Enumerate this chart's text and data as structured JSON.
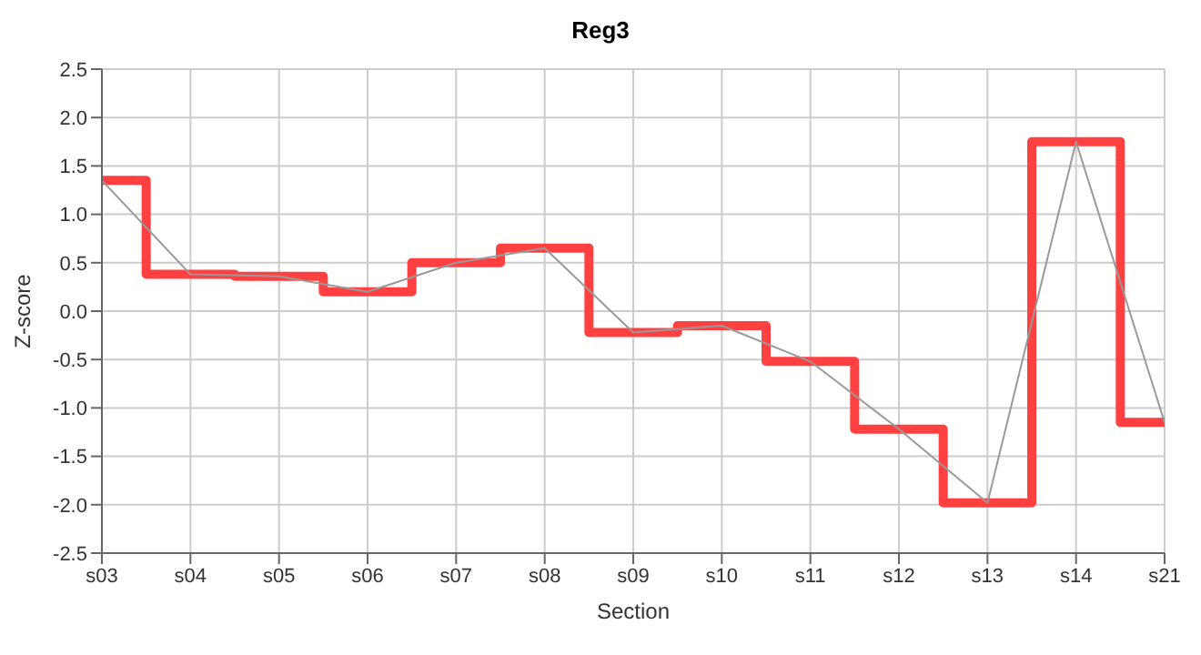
{
  "chart_data": {
    "type": "step",
    "title": "Reg3",
    "xlabel": "Section",
    "ylabel": "Z-score",
    "categories": [
      "s03",
      "s04",
      "s05",
      "s06",
      "s07",
      "s08",
      "s09",
      "s10",
      "s11",
      "s12",
      "s13",
      "s14",
      "s21"
    ],
    "series": [
      {
        "color": "#ff4040",
        "values": [
          1.35,
          0.38,
          0.36,
          0.2,
          0.5,
          0.65,
          -0.22,
          -0.15,
          -0.52,
          -1.22,
          -1.98,
          1.75,
          -1.15
        ]
      },
      {
        "type": "line",
        "color": "#999999",
        "values": [
          1.35,
          0.38,
          0.36,
          0.2,
          0.5,
          0.65,
          -0.22,
          -0.15,
          -0.52,
          -1.22,
          -1.98,
          1.75,
          -1.15
        ]
      }
    ],
    "ylim": [
      -2.5,
      2.5
    ],
    "yticks": [
      -2.5,
      {
        "value": -2,
        "label": "-2.0"
      },
      -1.5,
      {
        "value": -1,
        "label": "-1.0"
      },
      -0.5,
      {
        "value": 0,
        "label": "0.0"
      },
      0.5,
      {
        "value": 1,
        "label": "1.0"
      },
      1.5,
      {
        "value": 2,
        "label": "2.0"
      },
      2.5
    ],
    "grid": true,
    "marker": "none"
  }
}
